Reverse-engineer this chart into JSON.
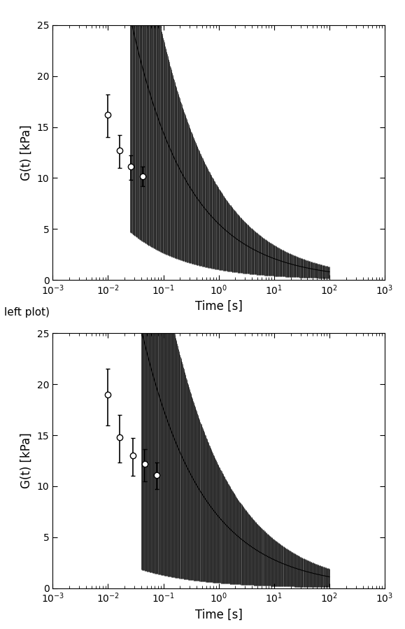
{
  "top_plot": {
    "ylabel": "G(t) [kPa]",
    "xlabel": "Time [s]",
    "ylim": [
      0,
      25
    ],
    "xlim_log": [
      -3,
      3
    ],
    "sparse_times": [
      0.0099,
      0.016,
      0.026,
      0.042
    ],
    "sparse_values": [
      16.2,
      12.7,
      11.1,
      10.2
    ],
    "sparse_yerr_lo": [
      2.2,
      1.7,
      1.3,
      1.0
    ],
    "sparse_yerr_hi": [
      2.0,
      1.5,
      1.1,
      0.9
    ],
    "dense_t_start_log": -1.6,
    "dense_t_end_log": 2.0,
    "dense_n_points": 400,
    "power_A": 5.5,
    "power_alpha": 0.42,
    "dense_err_lo_A": 4.5,
    "dense_err_hi_A": 3.5,
    "dense_err_alpha": 0.42
  },
  "bottom_plot": {
    "ylabel": "G(t) [kPa]",
    "xlabel": "Time [s]",
    "ylim": [
      0,
      25
    ],
    "xlim_log": [
      -3,
      3
    ],
    "sparse_times": [
      0.0099,
      0.016,
      0.028,
      0.046,
      0.075
    ],
    "sparse_values": [
      19.0,
      14.8,
      13.0,
      12.2,
      11.1
    ],
    "sparse_yerr_lo": [
      3.0,
      2.5,
      2.0,
      1.7,
      1.4
    ],
    "sparse_yerr_hi": [
      2.5,
      2.2,
      1.7,
      1.4,
      1.2
    ],
    "dense_t_start_log": -1.4,
    "dense_t_end_log": 2.0,
    "dense_n_points": 400,
    "power_A": 7.0,
    "power_alpha": 0.4,
    "dense_err_lo_A": 6.5,
    "dense_err_hi_A": 5.0,
    "dense_err_alpha": 0.4
  },
  "label_text": "left plot)",
  "label_fontsize": 11,
  "axis_fontsize": 12,
  "tick_fontsize": 10,
  "line_color": "black",
  "marker": "o",
  "markerfacecolor": "white",
  "markersize": 6,
  "capsize": 2,
  "linewidth": 1.2
}
